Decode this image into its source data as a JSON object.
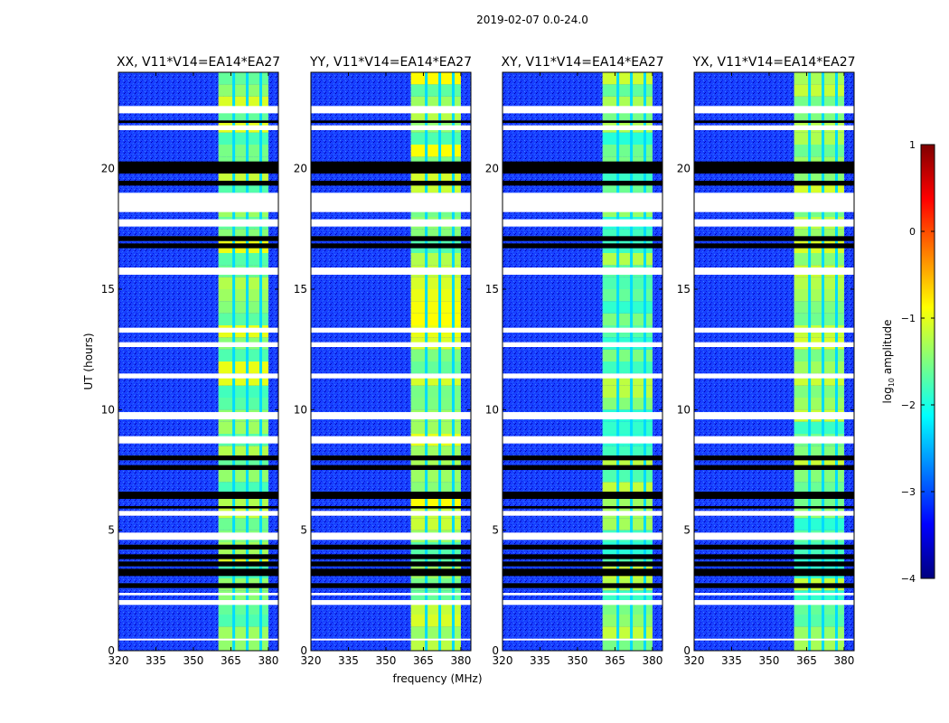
{
  "figure": {
    "suptitle": "2019-02-07 0.0-24.0",
    "xlabel": "frequency (MHz)",
    "ylabel": "UT (hours)"
  },
  "colorbar": {
    "label_prefix": "log",
    "label_sub": "10",
    "label_suffix": " amplitude",
    "range": [
      -4,
      1
    ],
    "ticks": [
      -4,
      -3,
      -2,
      -1,
      0,
      1
    ],
    "tick_labels": [
      "−4",
      "−3",
      "−2",
      "−1",
      "0",
      "1"
    ],
    "colors": [
      "#00007f",
      "#0000ff",
      "#007fff",
      "#00ffff",
      "#7fff7f",
      "#ffff00",
      "#ff7f00",
      "#ff0000",
      "#7f0000"
    ]
  },
  "chart_data": [
    {
      "type": "heatmap",
      "title": "XX, V11*V14=EA14*EA27",
      "xlabel": "frequency (MHz)",
      "ylabel": "UT (hours)",
      "xlim": [
        320,
        384
      ],
      "ylim": [
        0,
        24
      ],
      "xticks": [
        320,
        335,
        350,
        365,
        380
      ],
      "yticks": [
        0,
        5,
        10,
        15,
        20
      ],
      "band_mhz": [
        360,
        380
      ],
      "band_log10_amp": -1.4,
      "background_log10_amp": -3.0
    },
    {
      "type": "heatmap",
      "title": "YY, V11*V14=EA14*EA27",
      "xlabel": "frequency (MHz)",
      "ylabel": "UT (hours)",
      "xlim": [
        320,
        384
      ],
      "ylim": [
        0,
        24
      ],
      "xticks": [
        320,
        335,
        350,
        365,
        380
      ],
      "yticks": [
        0,
        5,
        10,
        15,
        20
      ],
      "band_mhz": [
        360,
        380
      ],
      "band_log10_amp": -1.3,
      "background_log10_amp": -3.0
    },
    {
      "type": "heatmap",
      "title": "XY, V11*V14=EA14*EA27",
      "xlabel": "frequency (MHz)",
      "ylabel": "UT (hours)",
      "xlim": [
        320,
        384
      ],
      "ylim": [
        0,
        24
      ],
      "xticks": [
        320,
        335,
        350,
        365,
        380
      ],
      "yticks": [
        0,
        5,
        10,
        15,
        20
      ],
      "band_mhz": [
        360,
        380
      ],
      "band_log10_amp": -1.5,
      "background_log10_amp": -3.1
    },
    {
      "type": "heatmap",
      "title": "YX, V11*V14=EA14*EA27",
      "xlabel": "frequency (MHz)",
      "ylabel": "UT (hours)",
      "xlim": [
        320,
        384
      ],
      "ylim": [
        0,
        24
      ],
      "xticks": [
        320,
        335,
        350,
        365,
        380
      ],
      "yticks": [
        0,
        5,
        10,
        15,
        20
      ],
      "band_mhz": [
        360,
        380
      ],
      "band_log10_amp": -1.5,
      "background_log10_amp": -3.1
    }
  ],
  "flagged_hours_white": [
    [
      22.3,
      22.6
    ],
    [
      21.6,
      21.8
    ],
    [
      19.0,
      18.2
    ],
    [
      17.9,
      17.6
    ],
    [
      15.9,
      15.6
    ],
    [
      13.4,
      13.2
    ],
    [
      12.8,
      12.6
    ],
    [
      11.5,
      11.3
    ],
    [
      9.9,
      9.6
    ],
    [
      8.9,
      8.6
    ],
    [
      5.8,
      5.6
    ],
    [
      4.9,
      4.6
    ],
    [
      2.4,
      2.3
    ],
    [
      2.1,
      1.9
    ],
    [
      0.5,
      0.45
    ]
  ],
  "blank_hours_black": [
    [
      20.3,
      19.8
    ],
    [
      19.5,
      19.3
    ],
    [
      17.2,
      17.0
    ],
    [
      16.9,
      16.7
    ],
    [
      8.1,
      7.9
    ],
    [
      7.7,
      7.5
    ],
    [
      6.6,
      6.3
    ],
    [
      6.0,
      5.9
    ],
    [
      4.4,
      4.2
    ],
    [
      4.0,
      3.8
    ],
    [
      3.7,
      3.5
    ],
    [
      3.4,
      3.1
    ],
    [
      2.8,
      2.6
    ],
    [
      22.0,
      21.9
    ]
  ]
}
